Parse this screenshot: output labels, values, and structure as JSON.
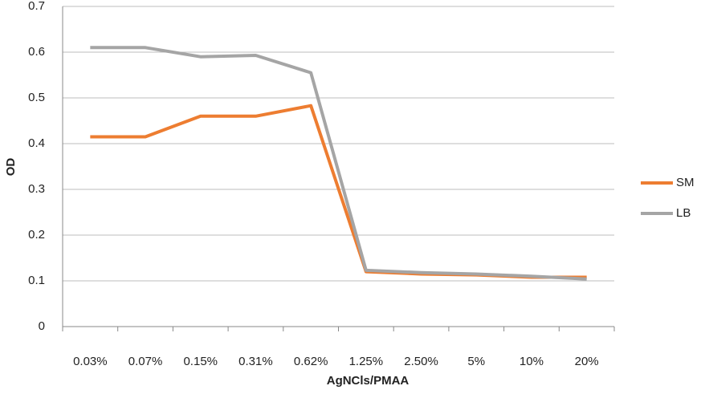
{
  "chart_data": {
    "type": "line",
    "x_label": "AgNCls/PMAA",
    "y_label": "OD",
    "categories": [
      "0.03%",
      "0.07%",
      "0.15%",
      "0.31%",
      "0.62%",
      "1.25%",
      "2.50%",
      "5%",
      "10%",
      "20%"
    ],
    "series": [
      {
        "name": "SM",
        "color": "#ed7d31",
        "values": [
          0.415,
          0.415,
          0.46,
          0.46,
          0.483,
          0.12,
          0.115,
          0.113,
          0.108,
          0.108
        ]
      },
      {
        "name": "LB",
        "color": "#a5a5a5",
        "values": [
          0.61,
          0.61,
          0.59,
          0.593,
          0.555,
          0.123,
          0.118,
          0.115,
          0.11,
          0.104
        ]
      }
    ],
    "ylim": [
      0,
      0.7
    ],
    "yticks": [
      0,
      0.1,
      0.2,
      0.3,
      0.4,
      0.5,
      0.6,
      0.7
    ],
    "grid": true,
    "legend": "right"
  }
}
